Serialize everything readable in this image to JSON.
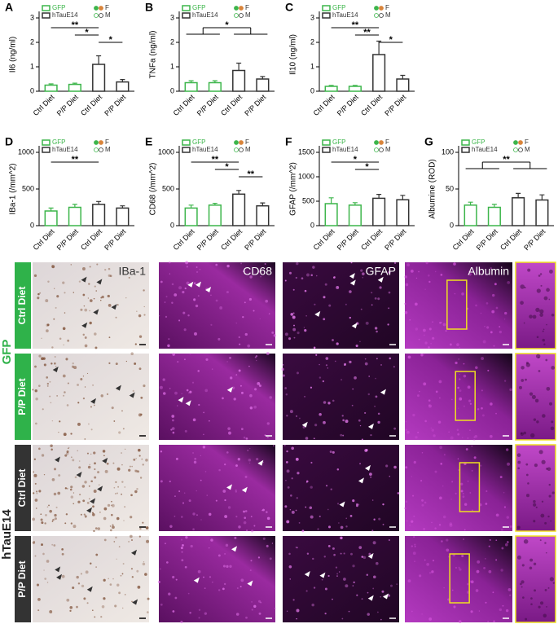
{
  "chart_data": [
    {
      "type": "bar",
      "panel": "A",
      "ylabel": "Il6 (ng/ml)",
      "categories": [
        "Ctrl Diet",
        "P/P Diet",
        "Ctrl Diet",
        "P/P Diet"
      ],
      "series": [
        {
          "name": "GFP",
          "color": "#3cb54a",
          "values": [
            0.25,
            0.28,
            null,
            null
          ],
          "errors": [
            0.05,
            0.05,
            null,
            null
          ]
        },
        {
          "name": "hTauE14",
          "color": "#333333",
          "values": [
            null,
            null,
            1.1,
            0.38
          ],
          "errors": [
            null,
            null,
            0.35,
            0.1
          ]
        }
      ],
      "dot_legend": [
        "F",
        "M"
      ],
      "ylim": [
        0,
        3
      ],
      "yticks": [
        0,
        1,
        2,
        3
      ],
      "annotations": [
        {
          "text": "**",
          "from": [
            0
          ],
          "to": [
            2
          ]
        },
        {
          "text": "*",
          "from": [
            1
          ],
          "to": [
            2
          ]
        },
        {
          "text": "*",
          "from": [
            2
          ],
          "to": [
            3
          ]
        }
      ]
    },
    {
      "type": "bar",
      "panel": "B",
      "ylabel": "TNFa (ng/ml)",
      "categories": [
        "Ctrl Diet",
        "P/P Diet",
        "Ctrl Diet",
        "P/P Diet"
      ],
      "series": [
        {
          "name": "GFP",
          "color": "#3cb54a",
          "values": [
            0.35,
            0.35,
            null,
            null
          ],
          "errors": [
            0.08,
            0.08,
            null,
            null
          ]
        },
        {
          "name": "hTauE14",
          "color": "#333333",
          "values": [
            null,
            null,
            0.85,
            0.5
          ],
          "errors": [
            null,
            null,
            0.3,
            0.1
          ]
        }
      ],
      "dot_legend": [
        "F",
        "M"
      ],
      "ylim": [
        0,
        3
      ],
      "yticks": [
        0,
        1,
        2,
        3
      ],
      "annotations": [
        {
          "text": "*",
          "from": [
            0,
            1
          ],
          "to": [
            2,
            3
          ]
        }
      ]
    },
    {
      "type": "bar",
      "panel": "C",
      "ylabel": "Il10 (ng/ml)",
      "categories": [
        "Ctrl Diet",
        "P/P Diet",
        "Ctrl Diet",
        "P/P Diet"
      ],
      "series": [
        {
          "name": "GFP",
          "color": "#3cb54a",
          "values": [
            0.2,
            0.2,
            null,
            null
          ],
          "errors": [
            0.04,
            0.04,
            null,
            null
          ]
        },
        {
          "name": "hTauE14",
          "color": "#333333",
          "values": [
            null,
            null,
            1.5,
            0.5
          ],
          "errors": [
            null,
            null,
            0.55,
            0.15
          ]
        }
      ],
      "dot_legend": [
        "F",
        "M"
      ],
      "ylim": [
        0,
        3
      ],
      "yticks": [
        0,
        1,
        2,
        3
      ],
      "annotations": [
        {
          "text": "**",
          "from": [
            0
          ],
          "to": [
            2
          ]
        },
        {
          "text": "**",
          "from": [
            1
          ],
          "to": [
            2
          ]
        },
        {
          "text": "*",
          "from": [
            2
          ],
          "to": [
            3
          ]
        }
      ]
    },
    {
      "type": "bar",
      "panel": "D",
      "ylabel": "IBa-1 (/mm^2)",
      "categories": [
        "Ctrl Diet",
        "P/P Diet",
        "Ctrl Diet",
        "P/P Diet"
      ],
      "series": [
        {
          "name": "GFP",
          "color": "#3cb54a",
          "values": [
            200,
            250,
            null,
            null
          ],
          "errors": [
            40,
            40,
            null,
            null
          ]
        },
        {
          "name": "hTauE14",
          "color": "#333333",
          "values": [
            null,
            null,
            290,
            240
          ],
          "errors": [
            null,
            null,
            40,
            30
          ]
        }
      ],
      "dot_legend": [
        "F",
        "M"
      ],
      "ylim": [
        0,
        1000
      ],
      "yticks": [
        0,
        500,
        1000
      ],
      "annotations": [
        {
          "text": "**",
          "from": [
            0
          ],
          "to": [
            2
          ]
        }
      ]
    },
    {
      "type": "bar",
      "panel": "E",
      "ylabel": "CD68 (/mm^2)",
      "categories": [
        "Ctrl Diet",
        "P/P Diet",
        "Ctrl Diet",
        "P/P Diet"
      ],
      "series": [
        {
          "name": "GFP",
          "color": "#3cb54a",
          "values": [
            240,
            280,
            null,
            null
          ],
          "errors": [
            40,
            25,
            null,
            null
          ]
        },
        {
          "name": "hTauE14",
          "color": "#333333",
          "values": [
            null,
            null,
            430,
            270
          ],
          "errors": [
            null,
            null,
            50,
            40
          ]
        }
      ],
      "dot_legend": [
        "F",
        "M"
      ],
      "ylim": [
        0,
        1000
      ],
      "yticks": [
        0,
        500,
        1000
      ],
      "annotations": [
        {
          "text": "**",
          "from": [
            0
          ],
          "to": [
            2
          ]
        },
        {
          "text": "*",
          "from": [
            1
          ],
          "to": [
            2
          ]
        },
        {
          "text": "**",
          "from": [
            2
          ],
          "to": [
            3
          ]
        }
      ]
    },
    {
      "type": "bar",
      "panel": "F",
      "ylabel": "GFAP (/mm^2)",
      "categories": [
        "Ctrl Diet",
        "P/P Diet",
        "Ctrl Diet",
        "P/P Diet"
      ],
      "series": [
        {
          "name": "GFP",
          "color": "#3cb54a",
          "values": [
            450,
            420,
            null,
            null
          ],
          "errors": [
            120,
            50,
            null,
            null
          ]
        },
        {
          "name": "hTauE14",
          "color": "#333333",
          "values": [
            null,
            null,
            560,
            530
          ],
          "errors": [
            null,
            null,
            80,
            90
          ]
        }
      ],
      "dot_legend": [
        "F",
        "M"
      ],
      "ylim": [
        0,
        1500
      ],
      "yticks": [
        0,
        500,
        1000,
        1500
      ],
      "annotations": [
        {
          "text": "*",
          "from": [
            0
          ],
          "to": [
            2
          ]
        },
        {
          "text": "*",
          "from": [
            1
          ],
          "to": [
            2
          ]
        }
      ]
    },
    {
      "type": "bar",
      "panel": "G",
      "ylabel": "Albumine (ROD)",
      "categories": [
        "Ctrl Diet",
        "P/P Diet",
        "Ctrl Diet",
        "P/P Diet"
      ],
      "series": [
        {
          "name": "GFP",
          "color": "#3cb54a",
          "values": [
            28,
            25,
            null,
            null
          ],
          "errors": [
            4,
            4,
            null,
            null
          ]
        },
        {
          "name": "hTauE14",
          "color": "#333333",
          "values": [
            null,
            null,
            38,
            35
          ],
          "errors": [
            null,
            null,
            6,
            7
          ]
        }
      ],
      "dot_legend": [
        "F",
        "M"
      ],
      "ylim": [
        0,
        100
      ],
      "yticks": [
        0,
        50,
        100
      ],
      "annotations": [
        {
          "text": "**",
          "from": [
            0,
            1
          ],
          "to": [
            2,
            3
          ]
        }
      ]
    }
  ],
  "micrographs": {
    "group_labels": [
      "GFP",
      "hTauE14"
    ],
    "row_labels": [
      "Ctrl Diet",
      "P/P Diet",
      "Ctrl Diet",
      "P/P Diet"
    ],
    "column_labels": [
      "IBa-1",
      "CD68",
      "GFAP",
      "Albumin"
    ]
  }
}
